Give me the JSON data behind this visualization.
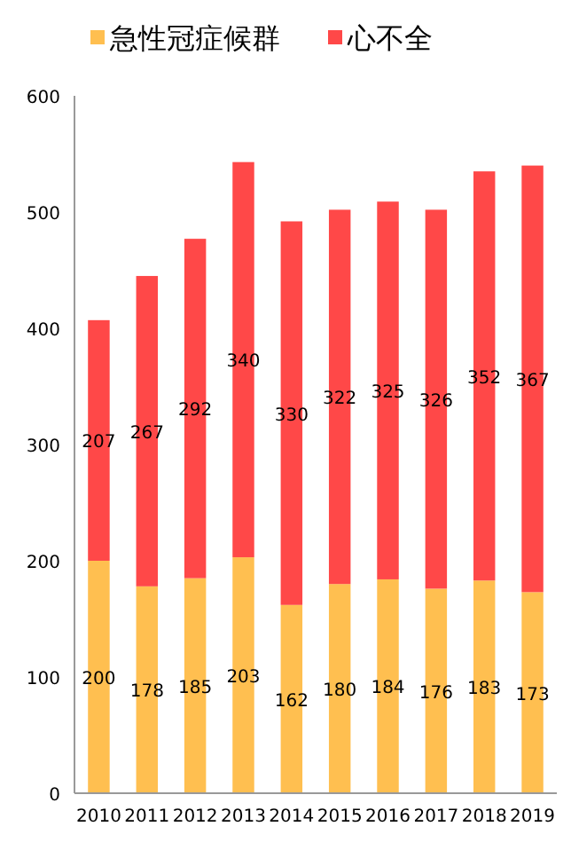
{
  "chart_data": {
    "type": "bar",
    "stacked": true,
    "categories": [
      "2010",
      "2011",
      "2012",
      "2013",
      "2014",
      "2015",
      "2016",
      "2017",
      "2018",
      "2019"
    ],
    "series": [
      {
        "name": "急性冠症候群",
        "color": "#ffbf50",
        "values": [
          200,
          178,
          185,
          203,
          162,
          180,
          184,
          176,
          183,
          173
        ]
      },
      {
        "name": "心不全",
        "color": "#ff4848",
        "values": [
          207,
          267,
          292,
          340,
          330,
          322,
          325,
          326,
          352,
          367
        ]
      }
    ],
    "ylim": [
      0,
      600
    ],
    "yticks": [
      0,
      100,
      200,
      300,
      400,
      500,
      600
    ],
    "data_labels": true,
    "legend": "top",
    "grid": false
  }
}
